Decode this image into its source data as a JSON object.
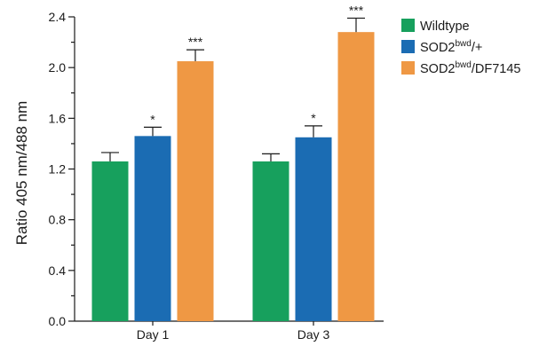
{
  "chart_data": {
    "type": "bar",
    "title": "",
    "xlabel": "",
    "ylabel": "Ratio 405 nm/488 nm",
    "ylim": [
      0,
      2.4
    ],
    "yticks": [
      "0.0",
      "0.4",
      "0.8",
      "1.2",
      "1.6",
      "2.0",
      "2.4"
    ],
    "categories": [
      "Day 1",
      "Day 3"
    ],
    "grid": false,
    "legend_position": "top-right",
    "series": [
      {
        "name": "Wildtype",
        "legend_base": "Wildtype",
        "legend_sup": "",
        "legend_suffix": "",
        "color": "#17a05d",
        "values": [
          1.26,
          1.26
        ],
        "errors": [
          0.07,
          0.06
        ],
        "significance": [
          "",
          ""
        ]
      },
      {
        "name": "SOD2bwd/+",
        "legend_base": "SOD2",
        "legend_sup": "bwd",
        "legend_suffix": "/+",
        "color": "#1b6cb3",
        "values": [
          1.46,
          1.45
        ],
        "errors": [
          0.07,
          0.09
        ],
        "significance": [
          "*",
          "*"
        ]
      },
      {
        "name": "SOD2bwd/DF7145",
        "legend_base": "SOD2",
        "legend_sup": "bwd",
        "legend_suffix": "/DF7145",
        "color": "#ef9844",
        "values": [
          2.05,
          2.28
        ],
        "errors": [
          0.09,
          0.11
        ],
        "significance": [
          "***",
          "***"
        ]
      }
    ]
  }
}
